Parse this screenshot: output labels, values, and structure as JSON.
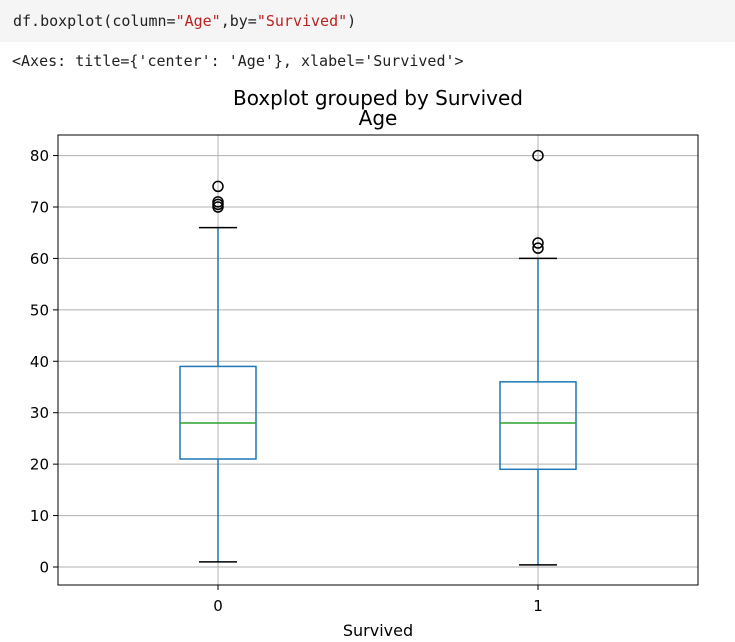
{
  "code_cell": {
    "prefix": "df.boxplot(column=",
    "arg1": "\"Age\"",
    "middle": ",by=",
    "arg2": "\"Survived\"",
    "suffix": ")"
  },
  "output_repr": "<Axes: title={'center': 'Age'}, xlabel='Survived'>",
  "chart_data": {
    "type": "boxplot",
    "suptitle": "Boxplot grouped by Survived",
    "title": "Age",
    "xlabel": "Survived",
    "ylabel": "",
    "ylim": [
      -3.5,
      84
    ],
    "yticks": [
      0,
      10,
      20,
      30,
      40,
      50,
      60,
      70,
      80
    ],
    "grid": true,
    "groups": [
      {
        "label": "0",
        "whisker_low": 1,
        "q1": 21,
        "median": 28,
        "q3": 39,
        "whisker_high": 66,
        "outliers": [
          70,
          70.5,
          71,
          74
        ]
      },
      {
        "label": "1",
        "whisker_low": 0.42,
        "q1": 19,
        "median": 28,
        "q3": 36,
        "whisker_high": 60,
        "outliers": [
          62,
          63,
          80
        ]
      }
    ],
    "colors": {
      "box": "#1f77b4",
      "median": "#2ca02c",
      "whisker": "#1f77b4",
      "cap": "#000000",
      "outlier": "#000000",
      "grid": "#b0b0b0"
    }
  }
}
